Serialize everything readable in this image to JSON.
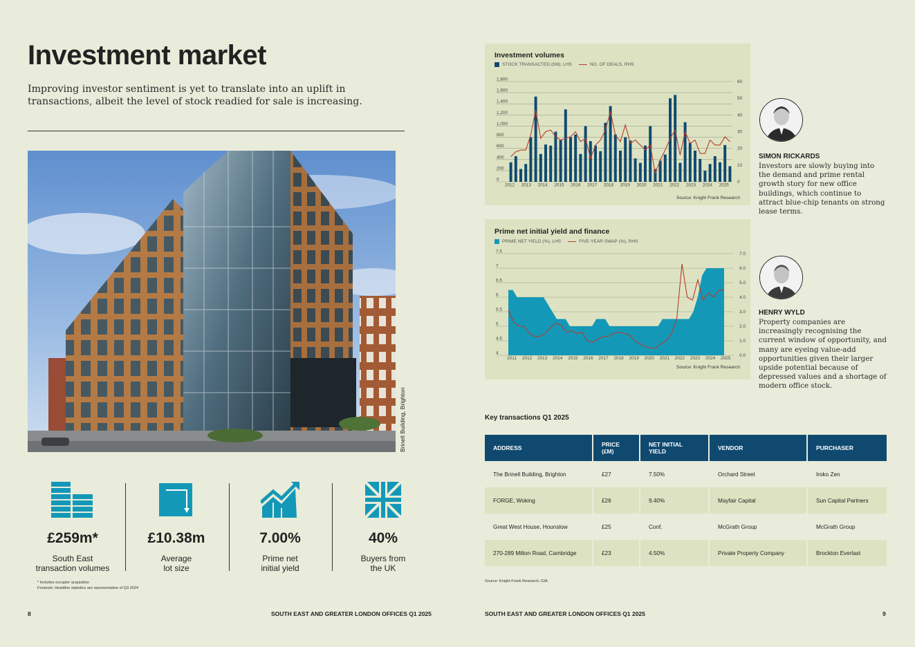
{
  "left": {
    "title": "Investment market",
    "subtitle": "Improving investor sentiment is yet to translate into an uplift in transactions, albeit the level of stock readied for sale is increasing.",
    "photo_caption": "Brinell Building, Brighton",
    "stats": [
      {
        "icon": "stacked-blocks-icon",
        "value": "£259m*",
        "label_1": "South East",
        "label_2": "transaction volumes"
      },
      {
        "icon": "corner-arrow-icon",
        "value": "£10.38m",
        "label_1": "Average",
        "label_2": "lot size"
      },
      {
        "icon": "rising-chart-icon",
        "value": "7.00%",
        "label_1": "Prime net",
        "label_2": "initial yield"
      },
      {
        "icon": "union-flag-icon",
        "value": "40%",
        "label_1": "Buyers from",
        "label_2": "the UK"
      }
    ],
    "footnote_1": "* Includes occupier acquisition",
    "footnote_2": "Footnote: Headline statistics are representative of Q3 2024",
    "page_number": "8",
    "running_title": "SOUTH EAST AND GREATER LONDON OFFICES Q1 2025"
  },
  "right": {
    "page_number": "9",
    "running_title": "SOUTH EAST AND GREATER LONDON OFFICES Q1 2025",
    "people": [
      {
        "name": "SIMON RICKARDS",
        "quote": "Investors are slowly buying into the demand and prime rental growth story for new office buildings, which continue to attract blue-chip tenants on strong lease terms."
      },
      {
        "name": "HENRY WYLD",
        "quote": "Property companies are increasingly recognising the current window of opportunity, and many are eyeing value-add opportunities given their larger upside potential because of depressed values and a shortage of modern office stock."
      }
    ],
    "transactions": {
      "title": "Key transactions Q1 2025",
      "headers": [
        "ADDRESS",
        "PRICE (£M)",
        "NET INITIAL YIELD",
        "VENDOR",
        "PURCHASER"
      ],
      "rows": [
        [
          "The Brinell Building, Brighton",
          "£27",
          "7.50%",
          "Orchard Street",
          "Iroko Zen"
        ],
        [
          "FORGE, Woking",
          "£26",
          "9.40%",
          "Mayfair Capital",
          "Sun Capital Partners"
        ],
        [
          "Great West House, Hounslow",
          "£25",
          "Conf.",
          "McGrath Group",
          "McGrath Group"
        ],
        [
          "270-289 Milton Road, Cambridge",
          "£23",
          "4.50%",
          "Private Property Company",
          "Brockton Everlast"
        ]
      ],
      "source": "Source: Knight Frank Research, GIA"
    }
  },
  "colors": {
    "navy": "#0f4970",
    "teal": "#1498b8",
    "red": "#b73c2c",
    "panel": "#dde3c2",
    "page": "#e9ecda"
  },
  "chart_data": [
    {
      "type": "bar",
      "title": "Investment volumes",
      "legend": [
        "STOCK TRANSACTED (£M), LHS",
        "NO. OF DEALS, RHS"
      ],
      "y_left_ticks": [
        "0",
        "200",
        "400",
        "600",
        "800",
        "1,000",
        "1,200",
        "1,400",
        "1,600",
        "1,800"
      ],
      "y_right_ticks": [
        "0",
        "10",
        "20",
        "30",
        "40",
        "50",
        "60"
      ],
      "x_ticks": [
        "2012",
        "2013",
        "2014",
        "2015",
        "2016",
        "2017",
        "2018",
        "2019",
        "2020",
        "2021",
        "2022",
        "2023",
        "2024",
        "2025"
      ],
      "ylim_left": [
        0,
        1800
      ],
      "ylim_right": [
        0,
        60
      ],
      "series": [
        {
          "name": "STOCK TRANSACTED (£M), LHS",
          "type": "bar",
          "values": [
            350,
            460,
            230,
            320,
            800,
            1530,
            500,
            670,
            650,
            900,
            750,
            1300,
            800,
            850,
            500,
            1000,
            730,
            650,
            550,
            1060,
            1360,
            850,
            560,
            800,
            740,
            420,
            340,
            650,
            1000,
            230,
            380,
            490,
            1500,
            1560,
            340,
            1070,
            700,
            560,
            410,
            200,
            320,
            460,
            350,
            660,
            280
          ]
        },
        {
          "name": "NO. OF DEALS, RHS",
          "type": "line",
          "values": [
            15,
            18,
            19,
            19,
            28,
            43,
            26,
            30,
            31,
            27,
            25,
            26,
            27,
            30,
            24,
            26,
            14,
            22,
            25,
            31,
            42,
            28,
            24,
            34,
            23,
            25,
            22,
            19,
            22,
            5,
            13,
            19,
            26,
            31,
            16,
            30,
            23,
            25,
            17,
            17,
            25,
            22,
            22,
            27,
            24
          ]
        }
      ],
      "source": "Source: Knight Frank Research"
    },
    {
      "type": "area",
      "title": "Prime net initial yield and finance",
      "legend": [
        "PRIME NET YIELD (%), LHS",
        "FIVE-YEAR SWAP (%), RHS"
      ],
      "y_left_ticks": [
        "4",
        "4.5",
        "5",
        "5.5",
        "6",
        "6.5",
        "7",
        "7.5"
      ],
      "y_right_ticks": [
        "0.0",
        "1.0",
        "2.0",
        "3.0",
        "4.0",
        "5.0",
        "6.0",
        "7.0"
      ],
      "x_ticks": [
        "2011",
        "2012",
        "2013",
        "2014",
        "2015",
        "2016",
        "2017",
        "2018",
        "2019",
        "2020",
        "2021",
        "2022",
        "2023",
        "2024",
        "2025"
      ],
      "ylim_left": [
        4,
        7.5
      ],
      "ylim_right": [
        0,
        7
      ],
      "series": [
        {
          "name": "PRIME NET YIELD (%), LHS",
          "type": "area",
          "values": [
            6.25,
            6.25,
            6.0,
            6.0,
            6.0,
            6.0,
            6.0,
            6.0,
            6.0,
            5.75,
            5.5,
            5.25,
            5.25,
            5.25,
            5.0,
            5.0,
            5.0,
            5.0,
            5.0,
            5.0,
            5.25,
            5.25,
            5.25,
            5.0,
            5.0,
            5.0,
            5.0,
            5.0,
            5.0,
            5.0,
            5.0,
            5.0,
            5.0,
            5.0,
            5.0,
            5.25,
            5.25,
            5.25,
            5.25,
            5.25,
            5.25,
            5.25,
            5.5,
            6.0,
            6.75,
            7.0,
            7.0,
            7.0,
            7.0,
            7.0
          ]
        },
        {
          "name": "FIVE-YEAR SWAP (%), RHS",
          "type": "line",
          "values": [
            3.1,
            2.3,
            2.0,
            2.0,
            1.5,
            1.3,
            1.3,
            1.5,
            1.9,
            2.2,
            2.1,
            1.6,
            1.7,
            1.5,
            1.6,
            1.0,
            0.9,
            1.1,
            1.3,
            1.3,
            1.5,
            1.6,
            1.5,
            1.4,
            1.0,
            0.8,
            0.6,
            0.5,
            0.5,
            0.8,
            1.0,
            1.5,
            2.5,
            6.3,
            4.0,
            3.8,
            5.2,
            3.8,
            4.3,
            4.0,
            4.5,
            4.5
          ]
        }
      ],
      "source": "Source: Knight Frank Research"
    }
  ]
}
